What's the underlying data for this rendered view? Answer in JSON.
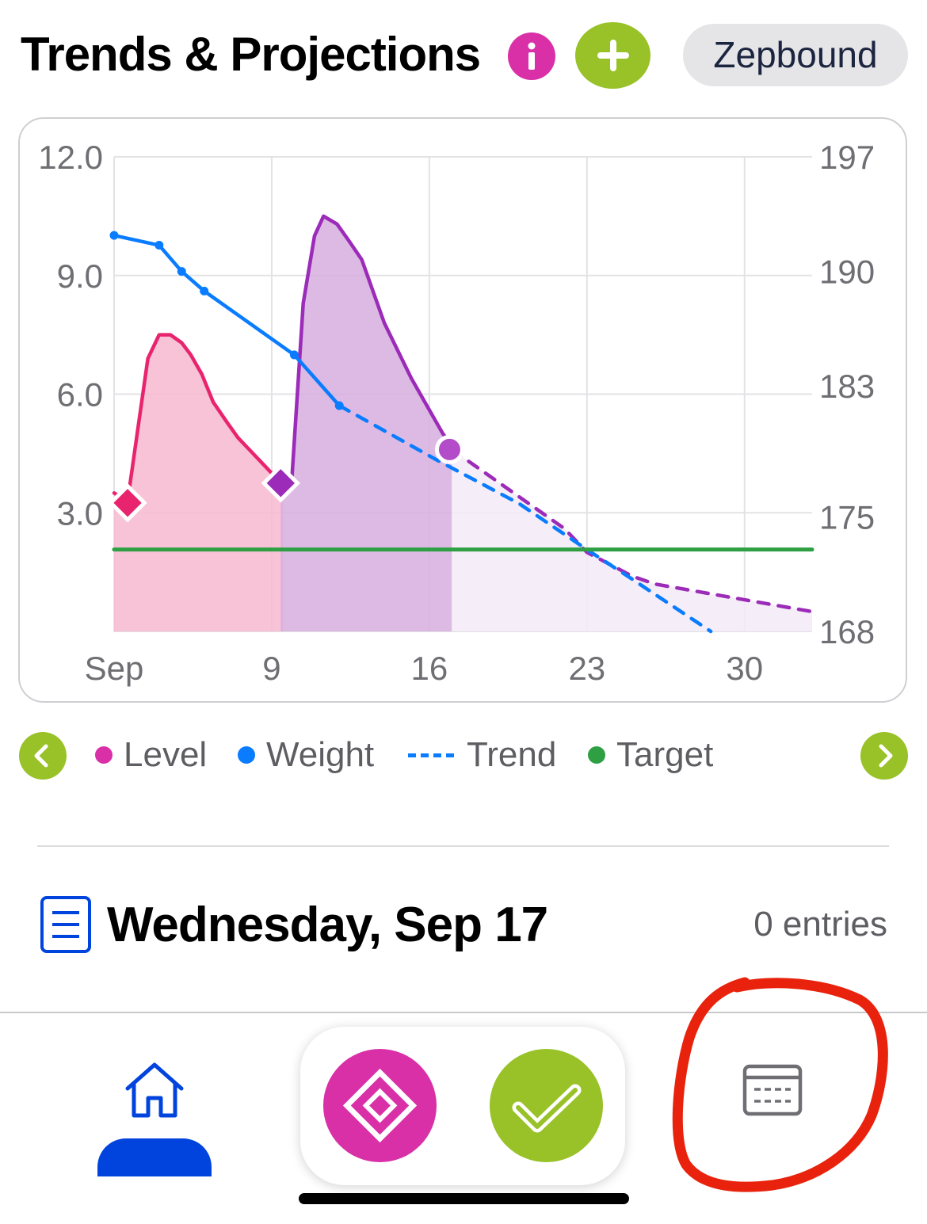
{
  "header": {
    "title": "Trends & Projections",
    "medication": "Zepbound"
  },
  "chart_data": {
    "type": "line",
    "x_axis": {
      "ticks": [
        "Sep",
        "9",
        "16",
        "23",
        "30"
      ],
      "tick_days": [
        2,
        9,
        16,
        23,
        30
      ],
      "range": [
        2,
        33
      ]
    },
    "y_left": {
      "ticks": [
        "12.0",
        "9.0",
        "6.0",
        "3.0"
      ],
      "tick_values": [
        12,
        9,
        6,
        3
      ],
      "range": [
        0,
        12
      ]
    },
    "y_right": {
      "ticks": [
        "197",
        "190",
        "183",
        "175",
        "168"
      ],
      "tick_values": [
        197,
        190,
        183,
        175,
        168
      ],
      "range": [
        168,
        197
      ]
    },
    "grid": true,
    "series": [
      {
        "name": "Level",
        "axis": "left",
        "color": "#e8246e",
        "fill": "#f7b9cf",
        "x": [
          2,
          2.6,
          3.1,
          3.5,
          4.0,
          4.5,
          5.0,
          5.4,
          5.9,
          6.4,
          7.0,
          7.5,
          8.0,
          8.5,
          9.0,
          9.5
        ],
        "y": [
          3.5,
          3.3,
          5.3,
          6.9,
          7.5,
          7.5,
          7.3,
          7.0,
          6.5,
          5.8,
          5.3,
          4.9,
          4.6,
          4.3,
          4.0,
          3.7
        ]
      },
      {
        "name": "Level",
        "axis": "left",
        "color": "#9b2bb8",
        "fill": "#d7aede",
        "x": [
          9.4,
          9.9,
          10.4,
          10.9,
          11.3,
          11.9,
          12.4,
          13.0,
          13.5,
          14.0,
          14.6,
          15.2,
          15.8,
          16.3,
          16.6,
          17.0
        ],
        "y": [
          3.7,
          3.9,
          8.3,
          10.0,
          10.5,
          10.3,
          9.9,
          9.4,
          8.6,
          7.8,
          7.1,
          6.4,
          5.8,
          5.3,
          5.0,
          4.7
        ]
      },
      {
        "name": "Level",
        "axis": "left",
        "color": "#9b2bb8",
        "dashed": true,
        "fill": "#f3eaf6",
        "x": [
          17,
          18,
          19,
          20,
          21,
          22,
          23,
          24,
          25,
          26,
          27,
          28,
          29,
          30,
          31,
          32,
          33
        ],
        "y": [
          4.6,
          4.2,
          3.8,
          3.4,
          3.0,
          2.6,
          2.0,
          1.7,
          1.4,
          1.2,
          1.1,
          1.0,
          0.9,
          0.8,
          0.7,
          0.6,
          0.5
        ]
      },
      {
        "name": "Weight",
        "axis": "right",
        "color": "#0a7cff",
        "x": [
          2,
          4,
          5,
          6,
          10,
          12
        ],
        "y": [
          192.2,
          191.6,
          190.0,
          188.8,
          184.9,
          181.8
        ]
      },
      {
        "name": "Trend",
        "axis": "right",
        "color": "#0a7cff",
        "dashed": true,
        "x": [
          12,
          16.3,
          20,
          23,
          25,
          28.5
        ],
        "y": [
          181.8,
          178.5,
          175.8,
          173.0,
          171.2,
          168.0
        ]
      },
      {
        "name": "Target",
        "axis": "left",
        "color": "#2ea043",
        "x": [
          2,
          33
        ],
        "y": [
          2.07,
          2.07
        ]
      }
    ],
    "markers": [
      {
        "series": "Level",
        "shape": "diamond",
        "x": 2.6,
        "y": 3.25,
        "color": "#e8246e"
      },
      {
        "series": "Level",
        "shape": "diamond",
        "x": 9.4,
        "y": 3.75,
        "color": "#9b2bb8"
      },
      {
        "series": "Level",
        "shape": "circle",
        "x": 16.9,
        "y": 4.6,
        "color": "#b44bc9"
      }
    ]
  },
  "legend": {
    "items": [
      {
        "label": "Level",
        "color": "#d930a8"
      },
      {
        "label": "Weight",
        "color": "#0a7cff"
      },
      {
        "label": "Trend",
        "color": "#0a7cff"
      },
      {
        "label": "Target",
        "color": "#2ea043"
      }
    ]
  },
  "day": {
    "title": "Wednesday, Sep 17",
    "entries": "0 entries"
  },
  "tabbar": {
    "icons": [
      "home-icon",
      "dose-icon",
      "checkmark-icon",
      "calendar-icon"
    ]
  },
  "colors": {
    "accent_green": "#98c227",
    "accent_magenta": "#d930a8",
    "home_blue": "#0044dd",
    "annotation_red": "#e8220c"
  }
}
